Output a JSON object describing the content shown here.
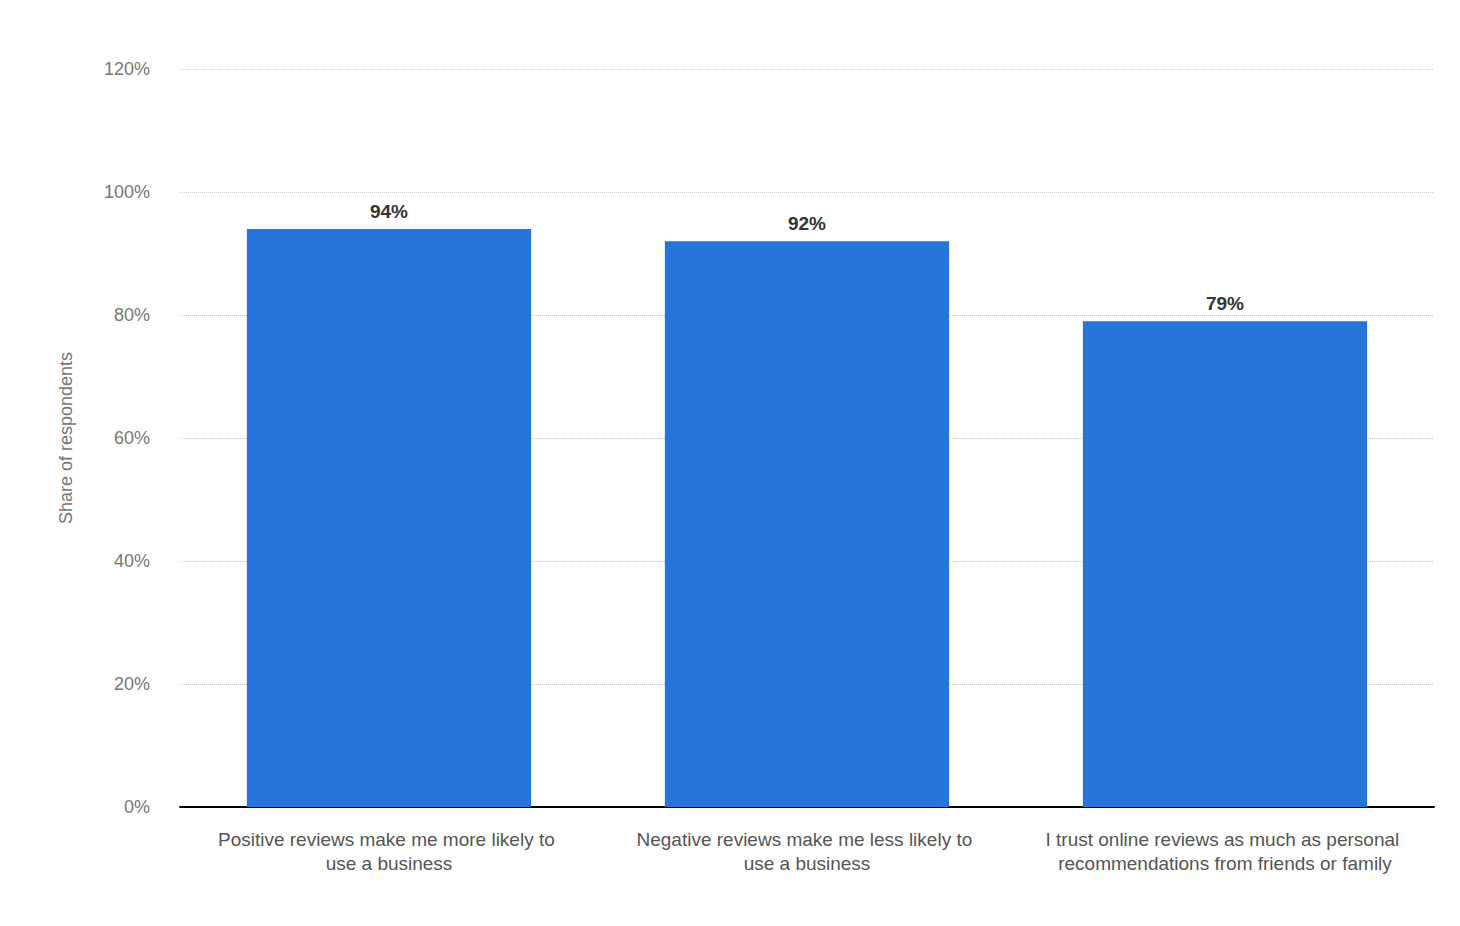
{
  "chart_data": {
    "type": "bar",
    "y_label": "Share of respondents",
    "categories": [
      "Positive reviews make me more likely to use a business",
      "Negative reviews make me less likely to use a business",
      "I trust online reviews as much as personal recommendations from friends or family"
    ],
    "values": [
      94,
      92,
      79
    ],
    "value_labels": [
      "94%",
      "92%",
      "79%"
    ],
    "color": "#2775db",
    "ylim": [
      0,
      120
    ],
    "yticks": [
      {
        "value": 0,
        "label": "0%"
      },
      {
        "value": 20,
        "label": "20%"
      },
      {
        "value": 40,
        "label": "40%"
      },
      {
        "value": 60,
        "label": "60%"
      },
      {
        "value": 80,
        "label": "80%"
      },
      {
        "value": 100,
        "label": "100%"
      },
      {
        "value": 120,
        "label": "120%"
      }
    ],
    "grid": true,
    "data_labels": true
  }
}
